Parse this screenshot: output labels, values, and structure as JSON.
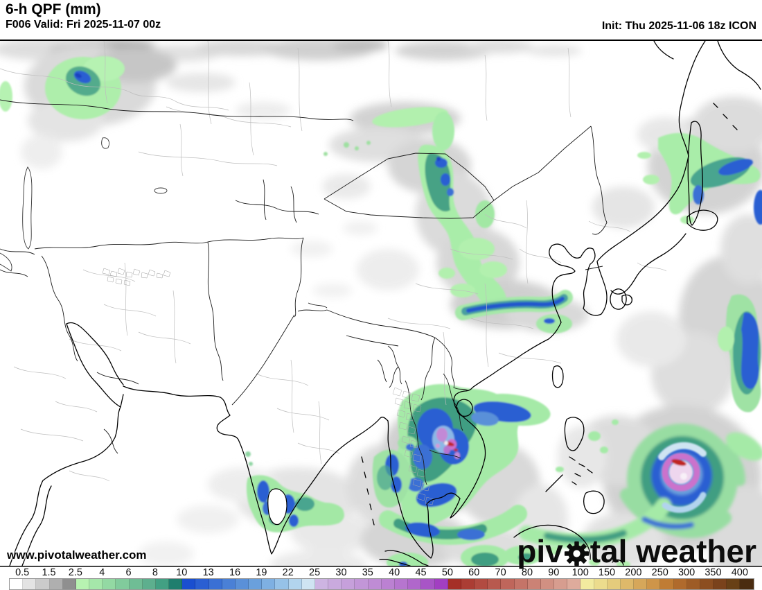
{
  "header": {
    "title": "6-h QPF (mm)",
    "valid": "F006 Valid: Fri 2025-11-07 00z",
    "init": "Init: Thu 2025-11-06 18z ICON"
  },
  "watermark": {
    "url": "www.pivotalweather.com"
  },
  "logo": {
    "before_gear": "piv",
    "after_gear": "tal weather",
    "gear_icon": "gear-icon"
  },
  "scale": {
    "unit": "mm",
    "labels": [
      "0.5",
      "1.5",
      "2.5",
      "4",
      "6",
      "8",
      "10",
      "13",
      "16",
      "19",
      "22",
      "25",
      "30",
      "35",
      "40",
      "45",
      "50",
      "60",
      "70",
      "80",
      "90",
      "100",
      "150",
      "200",
      "250",
      "300",
      "350",
      "400"
    ],
    "colors": [
      "#ffffff",
      "#e3e3e3",
      "#cbcbcb",
      "#afafaf",
      "#8f8f8f",
      "#b7f3b1",
      "#a5e7aa",
      "#93d9a3",
      "#81cb9c",
      "#6fbd95",
      "#5daf8e",
      "#42a083",
      "#1f7e6e",
      "#1a4fd0",
      "#2a5fd2",
      "#3a70d4",
      "#4a80d6",
      "#5a90d8",
      "#6aa0dc",
      "#7eb0e2",
      "#96c2e8",
      "#b2d4ee",
      "#cfe4f2",
      "#cdb4e2",
      "#c9aade",
      "#c6a0db",
      "#c296d8",
      "#bf8cd5",
      "#bb81d2",
      "#b675cf",
      "#b067cb",
      "#a855c6",
      "#a23fc2",
      "#a52f27",
      "#ab3d34",
      "#b24b41",
      "#b8594e",
      "#bf665b",
      "#c57468",
      "#cb8275",
      "#d19082",
      "#d79d8f",
      "#deab9c",
      "#f2eb9f",
      "#ecdc8d",
      "#e5cc7c",
      "#deb96a",
      "#d6a75a",
      "#ce9549",
      "#c07c34",
      "#b06a2c",
      "#9e5c26",
      "#8c4e20",
      "#7a421b",
      "#684016",
      "#4a2c10"
    ]
  },
  "map": {
    "region": "Asia",
    "precip_palette_key_colors": {
      "trace_gray": "#c9c9c9",
      "light_green": "#b7f3b1",
      "moderate_teal": "#42a083",
      "heavy_blue": "#2a5fd2",
      "very_heavy_purple": "#b673cf",
      "extreme_red": "#a52f27",
      "typhoon_core_pink": "#eed6ee"
    }
  }
}
